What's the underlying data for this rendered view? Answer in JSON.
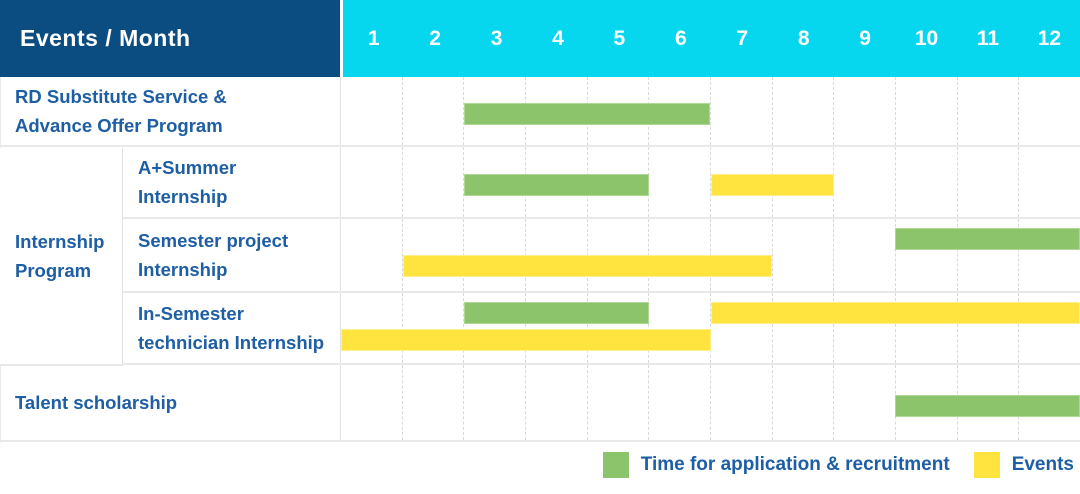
{
  "header": {
    "row_label_column": "Events / Month",
    "months": [
      "1",
      "2",
      "3",
      "4",
      "5",
      "6",
      "7",
      "8",
      "9",
      "10",
      "11",
      "12"
    ]
  },
  "colors": {
    "header_navy": "#0c4d81",
    "header_cyan": "#06d7ee",
    "application_green": "#8bc46a",
    "event_yellow": "#ffe33e",
    "label_blue": "#1d5ea4"
  },
  "chart_data": {
    "type": "gantt",
    "title": "Events / Month",
    "x_axis": {
      "unit": "month",
      "ticks": [
        1,
        2,
        3,
        4,
        5,
        6,
        7,
        8,
        9,
        10,
        11,
        12
      ],
      "range": [
        1,
        12
      ]
    },
    "legend_position": "bottom-right",
    "grid": "dashed-vertical-month-lines",
    "legend": [
      {
        "series": "application",
        "label": "Time for application & recruitment",
        "color": "#8bc46a"
      },
      {
        "series": "event",
        "label": "Events",
        "color": "#ffe33e"
      }
    ],
    "group_label": "Internship Program",
    "group_label_lines": [
      "Internship",
      "Program"
    ],
    "rows": [
      {
        "group": null,
        "label": "RD Substitute Service & Advance Offer Program",
        "label_lines": [
          "RD Substitute Service &",
          "Advance Offer Program"
        ],
        "bars": [
          {
            "series": "application",
            "start_month": 3,
            "end_month": 6,
            "line": "single"
          }
        ]
      },
      {
        "group": "Internship Program",
        "label": "A+Summer Internship",
        "label_lines": [
          "A+Summer",
          "Internship"
        ],
        "bars": [
          {
            "series": "application",
            "start_month": 3,
            "end_month": 5,
            "line": "single"
          },
          {
            "series": "event",
            "start_month": 7,
            "end_month": 8,
            "line": "single"
          }
        ]
      },
      {
        "group": "Internship Program",
        "label": "Semester project Internship",
        "label_lines": [
          "Semester project",
          "Internship"
        ],
        "bars": [
          {
            "series": "application",
            "start_month": 10,
            "end_month": 12,
            "line": "top"
          },
          {
            "series": "event",
            "start_month": 2,
            "end_month": 7,
            "line": "bottom"
          }
        ]
      },
      {
        "group": "Internship Program",
        "label": "In-Semester technician Internship",
        "label_lines": [
          "In-Semester",
          "technician Internship"
        ],
        "bars": [
          {
            "series": "application",
            "start_month": 3,
            "end_month": 5,
            "line": "top"
          },
          {
            "series": "event",
            "start_month": 7,
            "end_month": 12,
            "line": "top"
          },
          {
            "series": "event",
            "start_month": 1,
            "end_month": 6,
            "line": "bottom"
          }
        ]
      },
      {
        "group": null,
        "label": "Talent scholarship",
        "label_lines": [
          "Talent scholarship"
        ],
        "bars": [
          {
            "series": "application",
            "start_month": 10,
            "end_month": 12,
            "line": "single"
          }
        ]
      }
    ]
  },
  "legend": {
    "application_label": "Time for application & recruitment",
    "events_label": "Events"
  }
}
